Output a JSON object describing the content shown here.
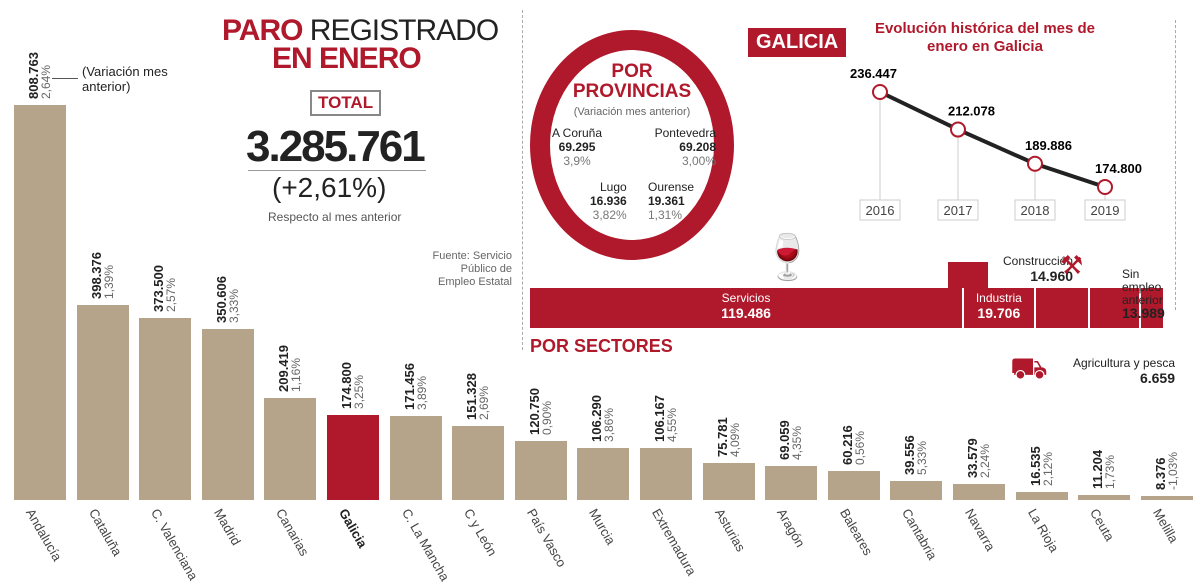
{
  "header": {
    "title_a": "PARO",
    "title_b": "REGISTRADO",
    "title_c": "EN ENERO",
    "total_tag": "TOTAL",
    "total": "3.285.761",
    "total_pct": "(+2,61%)",
    "total_sub": "Respecto al mes anterior",
    "variation_note": "(Variación mes anterior)"
  },
  "source": "Fuente: Servicio Público de Empleo Estatal",
  "galicia": {
    "tag": "GALICIA",
    "provinces": {
      "title": "POR PROVINCIAS",
      "subtitle": "(Variación mes anterior)",
      "items": [
        {
          "name": "A Coruña",
          "value": "69.295",
          "pct": "3,9%"
        },
        {
          "name": "Pontevedra",
          "value": "69.208",
          "pct": "3,00%"
        },
        {
          "name": "Lugo",
          "value": "16.936",
          "pct": "3,82%"
        },
        {
          "name": "Ourense",
          "value": "19.361",
          "pct": "1,31%"
        }
      ]
    },
    "sectors": {
      "title": "POR SECTORES",
      "items": [
        {
          "name": "Servicios",
          "value": 119486,
          "label": "119.486"
        },
        {
          "name": "Industria",
          "value": 19706,
          "label": "19.706"
        },
        {
          "name": "Construcción",
          "value": 14960,
          "label": "14.960"
        },
        {
          "name": "Sin empleo anterior",
          "value": 13989,
          "label": "13.989"
        },
        {
          "name": "Agricultura y pesca",
          "value": 6659,
          "label": "6.659"
        }
      ]
    }
  },
  "colors": {
    "accent": "#b0192b",
    "bar": "#b5a48a",
    "line": "#222222"
  },
  "chart_data": [
    {
      "type": "bar",
      "categories": [
        "Andalucía",
        "Cataluña",
        "C. Valenciana",
        "Madrid",
        "Canarias",
        "Galicia",
        "C. La Mancha",
        "C y León",
        "País Vasco",
        "Murcia",
        "Extremadura",
        "Asturias",
        "Aragón",
        "Baleares",
        "Cantabria",
        "Navarra",
        "La Rioja",
        "Ceuta",
        "Melilla"
      ],
      "values": [
        808763,
        398376,
        373500,
        350606,
        209419,
        174800,
        171456,
        151328,
        120750,
        106290,
        106167,
        75781,
        69059,
        60216,
        39556,
        33579,
        16535,
        11204,
        8376
      ],
      "labels": [
        "808.763",
        "398.376",
        "373.500",
        "350.606",
        "209.419",
        "174.800",
        "171.456",
        "151.328",
        "120.750",
        "106.290",
        "106.167",
        "75.781",
        "69.059",
        "60.216",
        "39.556",
        "33.579",
        "16.535",
        "11.204",
        "8.376"
      ],
      "variation": [
        "2,64%",
        "1,39%",
        "2,57%",
        "3,33%",
        "1,16%",
        "3,25%",
        "3,89%",
        "2,69%",
        "0,90%",
        "3,86%",
        "4,55%",
        "4,09%",
        "4,35%",
        "0,56%",
        "5,33%",
        "2,24%",
        "2,12%",
        "1,73%",
        "-1,03%"
      ],
      "highlight": "Galicia"
    },
    {
      "type": "line",
      "title": "Evolución histórica del mes de enero en Galicia",
      "x": [
        "2016",
        "2017",
        "2018",
        "2019"
      ],
      "values": [
        236447,
        212078,
        189886,
        174800
      ],
      "labels": [
        "236.447",
        "212.078",
        "189.886",
        "174.800"
      ]
    }
  ]
}
